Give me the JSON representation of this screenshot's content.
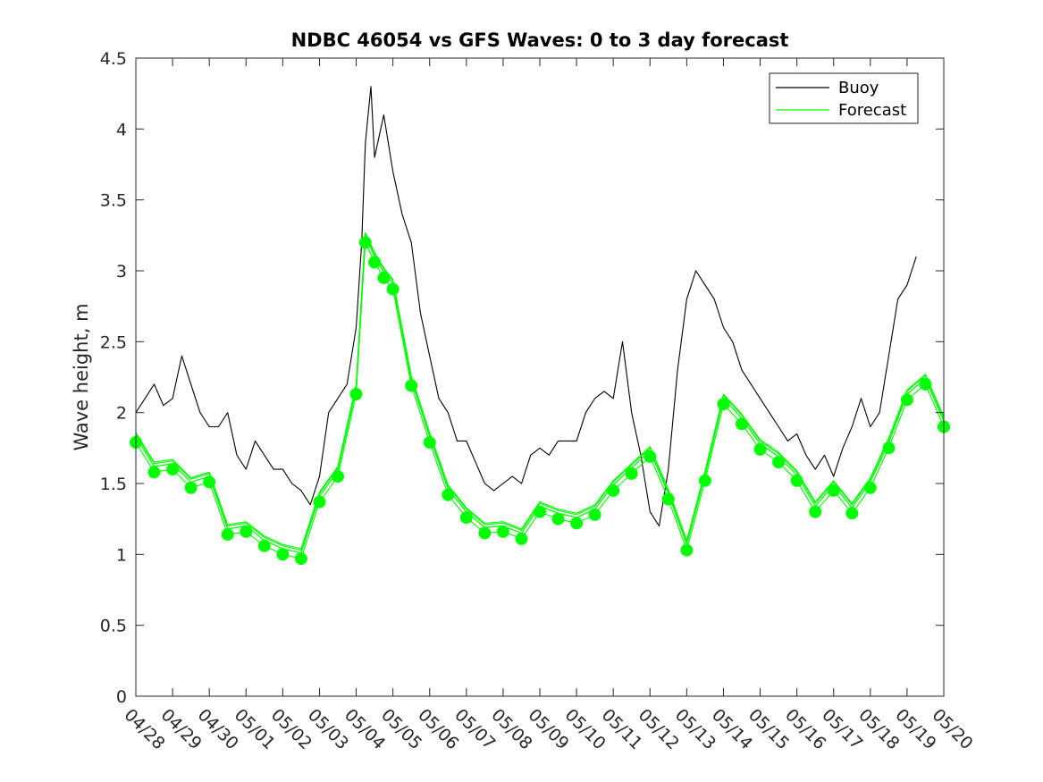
{
  "chart_data": {
    "type": "line",
    "title": "NDBC 46054 vs GFS Waves: 0 to 3 day forecast",
    "xlabel": "",
    "ylabel": "Wave height, m",
    "ylim": [
      0,
      4.5
    ],
    "yticks": [
      0,
      0.5,
      1,
      1.5,
      2,
      2.5,
      3,
      3.5,
      4,
      4.5
    ],
    "ytick_labels": [
      "0",
      "0.5",
      "1",
      "1.5",
      "2",
      "2.5",
      "3",
      "3.5",
      "4",
      "4.5"
    ],
    "xlim": [
      0,
      22
    ],
    "xtick_labels": [
      "04/28",
      "04/29",
      "04/30",
      "05/01",
      "05/02",
      "05/03",
      "05/04",
      "05/05",
      "05/06",
      "05/07",
      "05/08",
      "05/09",
      "05/10",
      "05/11",
      "05/12",
      "05/13",
      "05/14",
      "05/15",
      "05/16",
      "05/17",
      "05/18",
      "05/19",
      "05/20"
    ],
    "legend": {
      "placement": "top-right",
      "entries": [
        "Buoy",
        "Forecast"
      ]
    },
    "colors": {
      "buoy": "#000000",
      "forecast": "#00ff00",
      "axes": "#262626"
    },
    "series": [
      {
        "name": "Buoy",
        "color": "#000000",
        "x": [
          0,
          0.25,
          0.5,
          0.75,
          1,
          1.25,
          1.5,
          1.75,
          2,
          2.25,
          2.5,
          2.75,
          3,
          3.25,
          3.5,
          3.75,
          4,
          4.25,
          4.5,
          4.75,
          5,
          5.25,
          5.5,
          5.75,
          6,
          6.15,
          6.25,
          6.4,
          6.5,
          6.75,
          7,
          7.25,
          7.5,
          7.75,
          8,
          8.25,
          8.5,
          8.75,
          9,
          9.25,
          9.5,
          9.75,
          10,
          10.25,
          10.5,
          10.75,
          11,
          11.25,
          11.5,
          11.75,
          12,
          12.25,
          12.5,
          12.75,
          13,
          13.25,
          13.5,
          13.75,
          14,
          14.25,
          14.5,
          14.75,
          15,
          15.25,
          15.5,
          15.75,
          16,
          16.25,
          16.5,
          16.75,
          17,
          17.25,
          17.5,
          17.75,
          18,
          18.25,
          18.5,
          18.75,
          19,
          19.25,
          19.5,
          19.75,
          20,
          20.25,
          20.5,
          20.75,
          21,
          21.25
        ],
        "values": [
          2.0,
          2.1,
          2.2,
          2.05,
          2.1,
          2.4,
          2.2,
          2.0,
          1.9,
          1.9,
          2.0,
          1.7,
          1.6,
          1.8,
          1.7,
          1.6,
          1.6,
          1.5,
          1.45,
          1.35,
          1.55,
          2.0,
          2.1,
          2.2,
          2.6,
          3.2,
          3.9,
          4.3,
          3.8,
          4.1,
          3.7,
          3.4,
          3.2,
          2.7,
          2.4,
          2.1,
          2.0,
          1.8,
          1.8,
          1.65,
          1.5,
          1.45,
          1.5,
          1.55,
          1.5,
          1.7,
          1.75,
          1.7,
          1.8,
          1.8,
          1.8,
          2.0,
          2.1,
          2.15,
          2.1,
          2.5,
          2.0,
          1.7,
          1.3,
          1.2,
          1.6,
          2.3,
          2.8,
          3.0,
          2.9,
          2.8,
          2.6,
          2.5,
          2.3,
          2.2,
          2.1,
          2.0,
          1.9,
          1.8,
          1.85,
          1.7,
          1.6,
          1.7,
          1.55,
          1.75,
          1.9,
          2.1,
          1.9,
          2.0,
          2.4,
          2.8,
          2.9,
          3.1
        ]
      },
      {
        "name": "Forecast",
        "color": "#00ff00",
        "x": [
          0,
          0.5,
          1,
          1.5,
          2,
          2.5,
          3,
          3.5,
          4,
          4.5,
          5,
          5.5,
          6,
          6.25,
          6.5,
          6.75,
          7,
          7.5,
          8,
          8.5,
          9,
          9.5,
          10,
          10.5,
          11,
          11.5,
          12,
          12.5,
          13,
          13.5,
          14,
          14.5,
          15,
          15.5,
          16,
          16.5,
          17,
          17.5,
          18,
          18.5,
          19,
          19.5,
          20,
          20.5,
          21,
          21.5,
          22
        ],
        "values": [
          1.79,
          1.58,
          1.6,
          1.47,
          1.51,
          1.14,
          1.16,
          1.06,
          1.0,
          0.97,
          1.37,
          1.55,
          2.13,
          3.2,
          3.06,
          2.95,
          2.87,
          2.19,
          1.79,
          1.42,
          1.26,
          1.15,
          1.16,
          1.11,
          1.3,
          1.25,
          1.22,
          1.28,
          1.45,
          1.57,
          1.69,
          1.39,
          1.03,
          1.52,
          2.06,
          1.92,
          1.74,
          1.65,
          1.52,
          1.3,
          1.45,
          1.29,
          1.47,
          1.75,
          2.09,
          2.2,
          1.9
        ]
      }
    ]
  }
}
